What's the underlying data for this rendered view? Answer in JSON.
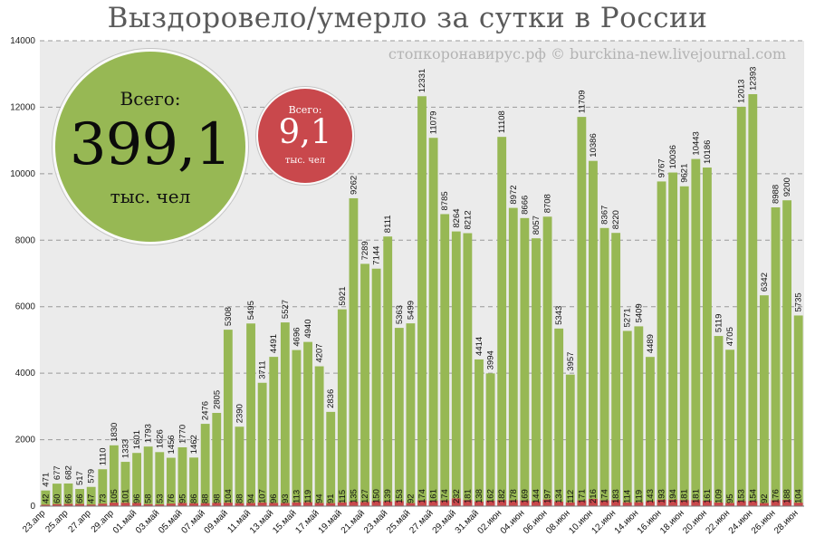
{
  "title": "Выздоровело/умерло за сутки в России",
  "watermark": "стопкоронавирус.рф © burckina-new.livejournal.com",
  "recovered_total": {
    "label": "Всего:",
    "value": "399,1",
    "unit": "тыс. чел"
  },
  "deaths_total": {
    "label": "Всего:",
    "value": "9,1",
    "unit": "тыс. чел"
  },
  "colors": {
    "recovered": "#97b854",
    "deaths": "#c9484c",
    "plot_bg": "#ebebeb",
    "grid": "#9a9a9a"
  },
  "chart_data": {
    "type": "bar",
    "stacked": true,
    "grid": true,
    "ylim": [
      0,
      14000
    ],
    "yticks": [
      0,
      2000,
      4000,
      6000,
      8000,
      10000,
      12000,
      14000
    ],
    "xtick_labels": [
      "23.апр",
      "25.апр",
      "27.апр",
      "29.апр",
      "01.май",
      "03.май",
      "05.май",
      "07.май",
      "09.май",
      "11.май",
      "13.май",
      "15.май",
      "17.май",
      "19.май",
      "21.май",
      "23.май",
      "25.май",
      "27.май",
      "29.май",
      "31.май",
      "02.июн",
      "04.июн",
      "06.июн",
      "08.июн",
      "10.июн",
      "12.июн",
      "14.июн",
      "16.июн",
      "18.июн",
      "20.июн",
      "22.июн",
      "24.июн",
      "26.июн",
      "28.июн"
    ],
    "categories": [
      "23.апр",
      "24.апр",
      "25.апр",
      "26.апр",
      "27.апр",
      "28.апр",
      "29.апр",
      "30.апр",
      "01.май",
      "02.май",
      "03.май",
      "04.май",
      "05.май",
      "06.май",
      "07.май",
      "08.май",
      "09.май",
      "10.май",
      "11.май",
      "12.май",
      "13.май",
      "14.май",
      "15.май",
      "16.май",
      "17.май",
      "18.май",
      "19.май",
      "20.май",
      "21.май",
      "22.май",
      "23.май",
      "24.май",
      "25.май",
      "26.май",
      "27.май",
      "28.май",
      "29.май",
      "30.май",
      "31.май",
      "01.июн",
      "02.июн",
      "03.июн",
      "04.июн",
      "05.июн",
      "06.июн",
      "07.июн",
      "08.июн",
      "09.июн",
      "10.июн",
      "11.июн",
      "12.июн",
      "13.июн",
      "14.июн",
      "15.июн",
      "16.июн",
      "17.июн",
      "18.июн",
      "19.июн",
      "20.июн",
      "21.июн",
      "22.июн",
      "23.июн",
      "24.июн",
      "25.июн",
      "26.июн",
      "27.июн",
      "28.июн"
    ],
    "series": [
      {
        "values": [
          471,
          677,
          682,
          517,
          579,
          1110,
          1830,
          1333,
          1601,
          1793,
          1626,
          1456,
          1770,
          1462,
          2476,
          2805,
          5308,
          2390,
          5495,
          3711,
          4491,
          5527,
          4696,
          4940,
          4207,
          2836,
          5921,
          9262,
          7289,
          7144,
          8111,
          5363,
          5499,
          12331,
          11079,
          8785,
          8264,
          8212,
          4414,
          3994,
          11108,
          8972,
          8666,
          8057,
          8708,
          5343,
          3957,
          11709,
          10386,
          8367,
          8220,
          5271,
          5409,
          4489,
          9767,
          10036,
          9621,
          10443,
          10186,
          5119,
          4705,
          12013,
          12393,
          6342,
          8988,
          9200,
          5735
        ]
      },
      {
        "values": [
          42,
          60,
          66,
          66,
          47,
          73,
          105,
          101,
          96,
          58,
          53,
          76,
          95,
          86,
          88,
          98,
          104,
          88,
          94,
          107,
          96,
          93,
          113,
          119,
          94,
          91,
          115,
          135,
          127,
          150,
          139,
          153,
          92,
          174,
          161,
          174,
          232,
          181,
          138,
          162,
          182,
          178,
          169,
          144,
          197,
          134,
          112,
          171,
          216,
          174,
          183,
          114,
          119,
          143,
          193,
          194,
          181,
          181,
          161,
          109,
          95,
          153,
          154,
          92,
          176,
          188,
          104
        ]
      }
    ]
  }
}
